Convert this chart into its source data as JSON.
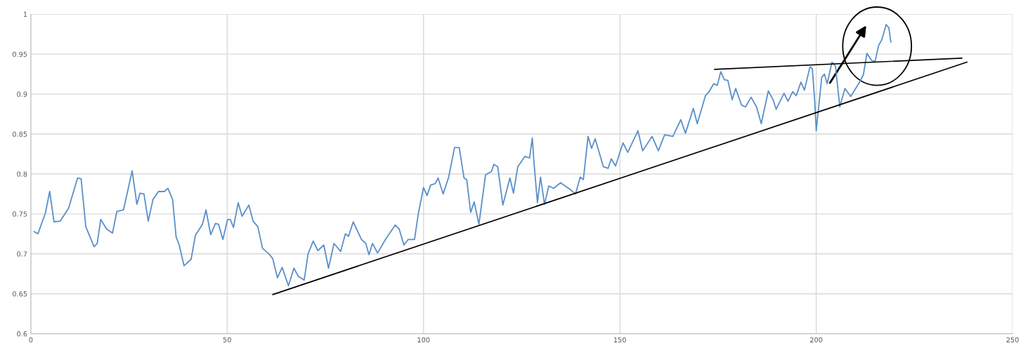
{
  "chart_data": {
    "type": "line",
    "xlim": [
      0,
      250
    ],
    "xticks": [
      0,
      50,
      100,
      150,
      200,
      250
    ],
    "ylim": [
      0.6,
      1
    ],
    "yticks": [
      0.6,
      0.65,
      0.7,
      0.75,
      0.8,
      0.85,
      0.9,
      0.95,
      1
    ],
    "grid": true,
    "series": [
      {
        "color": "#5b8fc9",
        "x": [
          0.8,
          1.8,
          3.7,
          4.8,
          5.9,
          7.5,
          9.6,
          11.9,
          12.8,
          14,
          16.1,
          16.9,
          17.8,
          19.3,
          20.8,
          21.9,
          23.6,
          25.8,
          27,
          27.8,
          28.8,
          29.9,
          31.1,
          32.5,
          34,
          34.9,
          36.1,
          37,
          37.8,
          39,
          40.8,
          41.9,
          43.7,
          44.6,
          45.8,
          47,
          47.8,
          48.9,
          50.1,
          50.8,
          51.6,
          52.8,
          53.8,
          55.5,
          56.6,
          57.8,
          59,
          60.8,
          61.6,
          62.8,
          64,
          65.6,
          67,
          68.1,
          69.6,
          70.6,
          71.9,
          73.1,
          74.6,
          75.8,
          77.2,
          78.9,
          80.1,
          80.9,
          82.1,
          84.2,
          85.3,
          86.1,
          87,
          88.3,
          90.3,
          92.8,
          93.8,
          95,
          96.1,
          97.7,
          98.7,
          100,
          100.9,
          101.8,
          103,
          103.7,
          105,
          106.4,
          107.9,
          109.1,
          110.3,
          111,
          112,
          112.9,
          114.1,
          115.8,
          117.3,
          117.9,
          118.9,
          120.2,
          122,
          122.9,
          124,
          125.8,
          127,
          127.7,
          128.1,
          129,
          129.8,
          130.8,
          131.9,
          133.1,
          134.9,
          137.2,
          138.7,
          139.9,
          140.7,
          141.9,
          142.8,
          143.7,
          145.8,
          147,
          147.8,
          148.9,
          150.8,
          152,
          154.6,
          155.8,
          158.2,
          159.8,
          161.4,
          163.5,
          165.5,
          166.7,
          168.7,
          169.7,
          171.8,
          172.7,
          173.9,
          174.8,
          175.7,
          176.6,
          177.5,
          178.6,
          179.5,
          181,
          182,
          183.4,
          184.8,
          186,
          187.8,
          189,
          189.8,
          191.8,
          192.8,
          194,
          194.9,
          196.1,
          197,
          198.4,
          199,
          199.6,
          200,
          200.5,
          201.4,
          202.1,
          202.8,
          204,
          204.9,
          206,
          207.3,
          208.8,
          210.8,
          212,
          212.9,
          214.1,
          215,
          215.9,
          216.7,
          217.8,
          218.5,
          219
        ],
        "values": [
          0.728,
          0.725,
          0.751,
          0.778,
          0.74,
          0.741,
          0.757,
          0.795,
          0.794,
          0.734,
          0.709,
          0.713,
          0.743,
          0.731,
          0.726,
          0.753,
          0.755,
          0.804,
          0.762,
          0.776,
          0.775,
          0.741,
          0.768,
          0.778,
          0.778,
          0.782,
          0.768,
          0.721,
          0.711,
          0.685,
          0.693,
          0.723,
          0.737,
          0.755,
          0.724,
          0.738,
          0.737,
          0.718,
          0.743,
          0.743,
          0.733,
          0.764,
          0.747,
          0.761,
          0.741,
          0.734,
          0.707,
          0.699,
          0.694,
          0.67,
          0.683,
          0.66,
          0.682,
          0.672,
          0.667,
          0.7,
          0.716,
          0.704,
          0.711,
          0.682,
          0.713,
          0.703,
          0.725,
          0.722,
          0.74,
          0.718,
          0.713,
          0.699,
          0.713,
          0.701,
          0.718,
          0.736,
          0.731,
          0.711,
          0.718,
          0.718,
          0.751,
          0.783,
          0.773,
          0.786,
          0.788,
          0.795,
          0.775,
          0.796,
          0.833,
          0.833,
          0.795,
          0.793,
          0.752,
          0.765,
          0.737,
          0.799,
          0.803,
          0.812,
          0.809,
          0.761,
          0.795,
          0.776,
          0.809,
          0.822,
          0.82,
          0.845,
          0.816,
          0.764,
          0.796,
          0.762,
          0.785,
          0.782,
          0.789,
          0.781,
          0.775,
          0.796,
          0.793,
          0.847,
          0.832,
          0.844,
          0.809,
          0.807,
          0.819,
          0.81,
          0.839,
          0.827,
          0.854,
          0.829,
          0.847,
          0.829,
          0.849,
          0.847,
          0.868,
          0.851,
          0.882,
          0.863,
          0.898,
          0.903,
          0.913,
          0.911,
          0.928,
          0.918,
          0.917,
          0.893,
          0.907,
          0.886,
          0.884,
          0.896,
          0.884,
          0.863,
          0.904,
          0.893,
          0.881,
          0.901,
          0.891,
          0.903,
          0.898,
          0.915,
          0.905,
          0.934,
          0.932,
          0.893,
          0.854,
          0.878,
          0.921,
          0.925,
          0.913,
          0.94,
          0.935,
          0.884,
          0.907,
          0.897,
          0.913,
          0.924,
          0.951,
          0.942,
          0.941,
          0.961,
          0.968,
          0.987,
          0.983,
          0.965
        ]
      },
      {
        "type": "line",
        "color": "#000000",
        "x": [
          61.6,
          238.4
        ],
        "values": [
          0.649,
          0.94
        ]
      },
      {
        "type": "line",
        "color": "#000000",
        "x": [
          174.1,
          237.1
        ],
        "values": [
          0.931,
          0.945
        ]
      }
    ]
  }
}
